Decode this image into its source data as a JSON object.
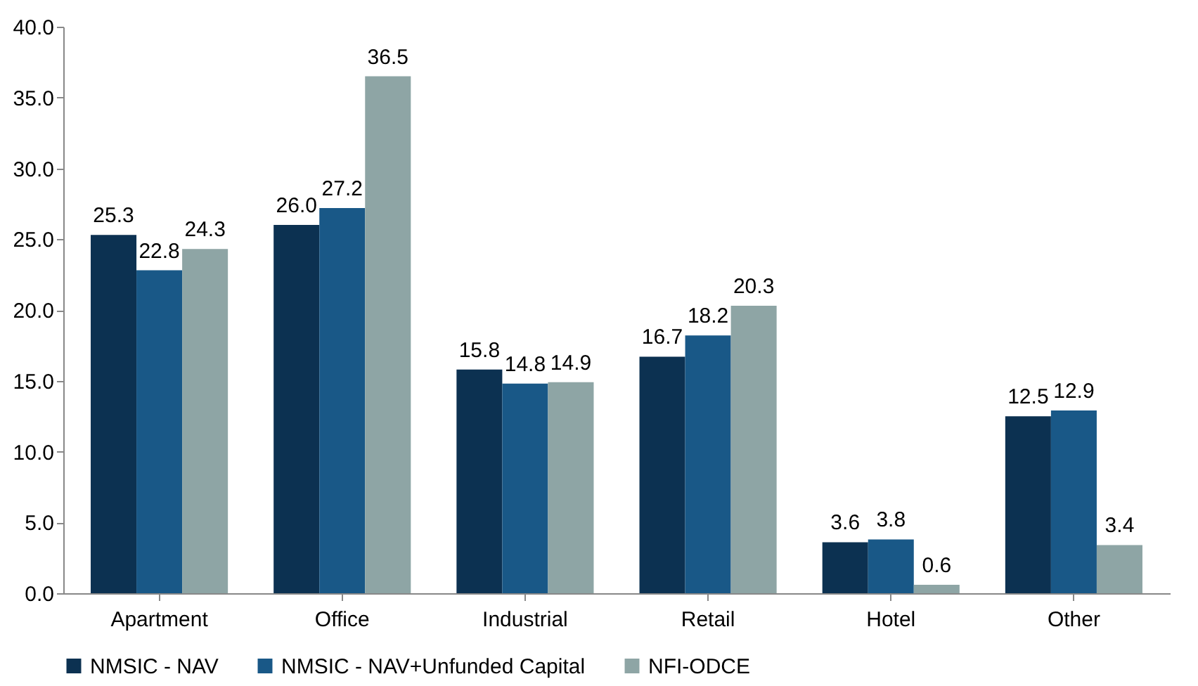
{
  "chart_data": {
    "type": "bar",
    "categories": [
      "Apartment",
      "Office",
      "Industrial",
      "Retail",
      "Hotel",
      "Other"
    ],
    "series": [
      {
        "name": "NMSIC - NAV",
        "color": "#0c3151",
        "values": [
          25.3,
          26.0,
          15.8,
          16.7,
          3.6,
          12.5
        ],
        "value_labels": [
          "25.3",
          "26.0",
          "15.8",
          "16.7",
          "3.6",
          "12.5"
        ]
      },
      {
        "name": "NMSIC - NAV+Unfunded Capital",
        "color": "#195887",
        "values": [
          22.8,
          27.2,
          14.8,
          18.2,
          3.8,
          12.9
        ],
        "value_labels": [
          "22.8",
          "27.2",
          "14.8",
          "18.2",
          "3.8",
          "12.9"
        ]
      },
      {
        "name": "NFI-ODCE",
        "color": "#8ea5a5",
        "values": [
          24.3,
          36.5,
          14.9,
          20.3,
          0.6,
          3.4
        ],
        "value_labels": [
          "24.3",
          "36.5",
          "14.9",
          "20.3",
          "0.6",
          "3.4"
        ]
      }
    ],
    "ylim": [
      0,
      40
    ],
    "yticks": [
      {
        "value": 0,
        "label": "0.0"
      },
      {
        "value": 5,
        "label": "5.0"
      },
      {
        "value": 10,
        "label": "10.0"
      },
      {
        "value": 15,
        "label": "15.0"
      },
      {
        "value": 20,
        "label": "20.0"
      },
      {
        "value": 25,
        "label": "25.0"
      },
      {
        "value": 30,
        "label": "30.0"
      },
      {
        "value": 35,
        "label": "35.0"
      },
      {
        "value": 40,
        "label": "40.0"
      }
    ],
    "grid": false,
    "legend": "bottom"
  }
}
